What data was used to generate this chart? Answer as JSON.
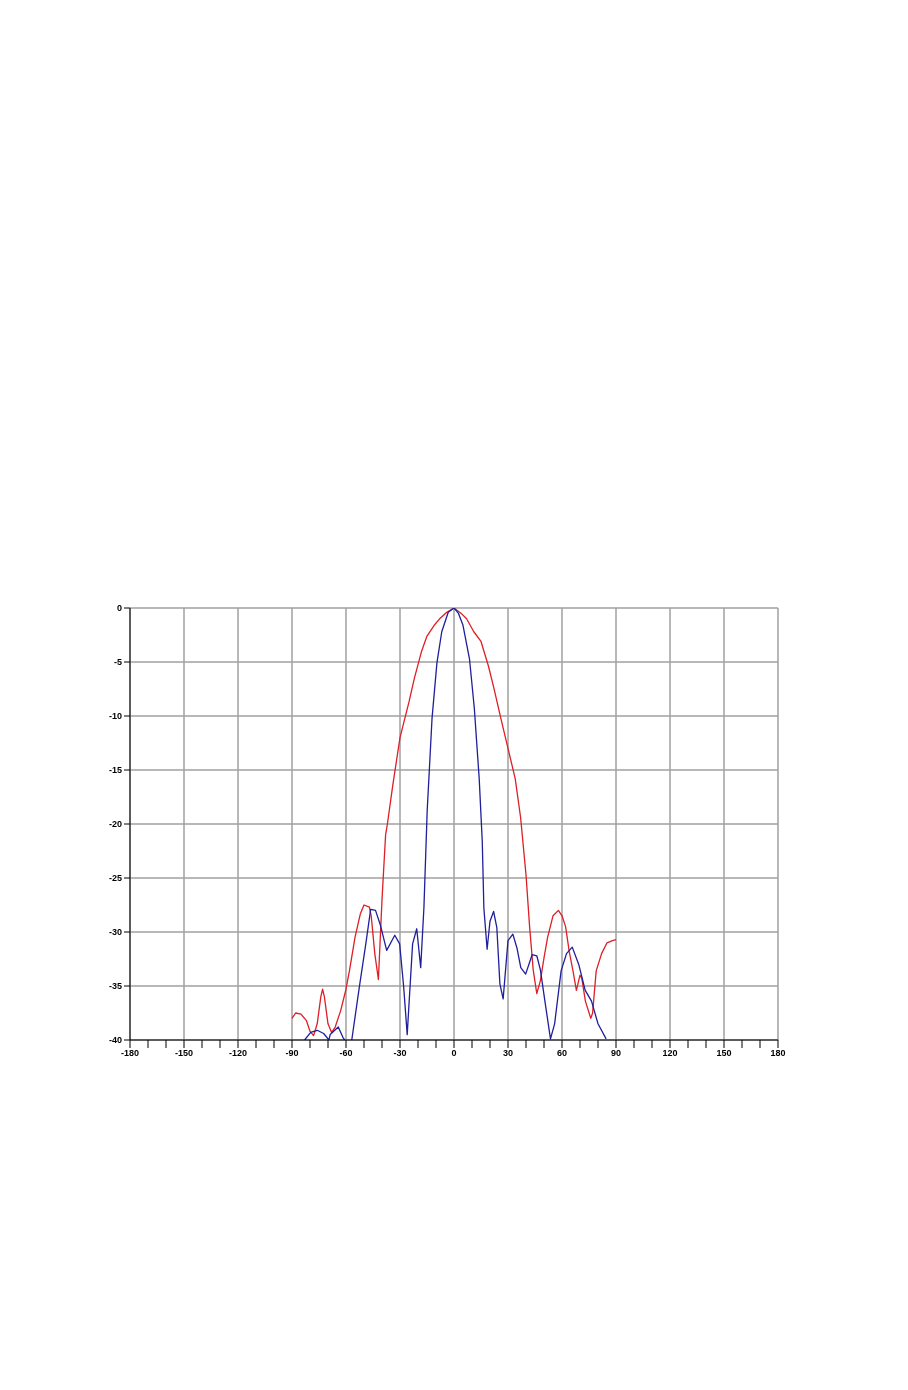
{
  "chart_data": {
    "type": "line",
    "xlim": [
      -180,
      180
    ],
    "ylim": [
      -40,
      0
    ],
    "xticks": [
      -180,
      {
        "value": -170,
        "label": null
      },
      {
        "value": -160,
        "label": null
      },
      -150,
      {
        "value": -140,
        "label": null
      },
      {
        "value": -130,
        "label": null
      },
      -120,
      {
        "value": -110,
        "label": null
      },
      {
        "value": -100,
        "label": null
      },
      -90,
      {
        "value": -80,
        "label": null
      },
      {
        "value": -70,
        "label": null
      },
      -60,
      {
        "value": -50,
        "label": null
      },
      {
        "value": -40,
        "label": null
      },
      -30,
      {
        "value": -20,
        "label": null
      },
      {
        "value": -10,
        "label": null
      },
      0,
      {
        "value": 10,
        "label": null
      },
      {
        "value": 20,
        "label": null
      },
      30,
      {
        "value": 40,
        "label": null
      },
      {
        "value": 50,
        "label": null
      },
      60,
      {
        "value": 70,
        "label": null
      },
      {
        "value": 80,
        "label": null
      },
      90,
      {
        "value": 100,
        "label": null
      },
      {
        "value": 110,
        "label": null
      },
      120,
      {
        "value": 130,
        "label": null
      },
      {
        "value": 140,
        "label": null
      },
      150,
      {
        "value": 160,
        "label": null
      },
      {
        "value": 170,
        "label": null
      },
      180
    ],
    "yticks": [
      0,
      -5,
      -10,
      -15,
      -20,
      -25,
      -30,
      -35,
      -40
    ],
    "grid": true,
    "series": [
      {
        "color": "#dd1f26",
        "x": [
          -90,
          -88,
          -85,
          -82,
          -80,
          -78,
          -76,
          -74,
          -73,
          -72,
          -70,
          -68,
          -66,
          -63,
          -60,
          -58,
          -55,
          -52,
          -50,
          -47,
          -46,
          -44,
          -42,
          -40,
          -38,
          -37,
          -34,
          -30,
          -25,
          -22,
          -18,
          -15,
          -11,
          -8,
          -4,
          0,
          4,
          7,
          11,
          15,
          19,
          22,
          26,
          30,
          34,
          37,
          40,
          42,
          44,
          46,
          48,
          50,
          52,
          55,
          58,
          60,
          62,
          64,
          66,
          68,
          70,
          71,
          73,
          76,
          77,
          79,
          82,
          85,
          88,
          90
        ],
        "values": [
          -38,
          -37.5,
          -37.6,
          -38.2,
          -39.2,
          -39.6,
          -38.5,
          -36,
          -35.3,
          -36,
          -38.5,
          -39.3,
          -38.8,
          -37.3,
          -35.3,
          -33.5,
          -30.5,
          -28.3,
          -27.5,
          -27.7,
          -28.5,
          -32,
          -34.4,
          -27,
          -21,
          -20,
          -16.4,
          -12,
          -8.7,
          -6.5,
          -4,
          -2.6,
          -1.6,
          -1,
          -0.4,
          0,
          -0.5,
          -1,
          -2.2,
          -3.1,
          -5.3,
          -7.3,
          -10.2,
          -13,
          -15.8,
          -19.4,
          -24.7,
          -29.5,
          -33.5,
          -35.7,
          -34.5,
          -32.4,
          -30.5,
          -28.5,
          -28,
          -28.5,
          -29.5,
          -31.8,
          -33.5,
          -35.4,
          -34,
          -34.3,
          -36.4,
          -38,
          -37.5,
          -33.6,
          -32,
          -31,
          -30.8,
          -30.7
        ]
      },
      {
        "color": "#1f1f9c",
        "x": [
          -83,
          -79.6,
          -76,
          -72.4,
          -69.5,
          -68.8,
          -64.3,
          -61.6,
          -60.7,
          -58.5,
          -56.8,
          -52.6,
          -49,
          -46.3,
          -43.6,
          -41,
          -37.4,
          -32.9,
          -30.2,
          -28,
          -26,
          -23,
          -20.7,
          -18.5,
          -16.7,
          -14.9,
          -12.2,
          -9.5,
          -6.8,
          -3.2,
          0,
          2.5,
          5,
          8.6,
          11.3,
          14,
          15.7,
          16.6,
          18.4,
          20,
          22,
          23.8,
          25.5,
          27.3,
          30,
          32.7,
          35,
          37.1,
          39.8,
          43.4,
          46,
          48,
          50.5,
          53.6,
          55.9,
          59.5,
          62.5,
          65.7,
          69.3,
          72.9,
          76.4,
          80,
          84.5
        ],
        "values": [
          -40,
          -39.3,
          -39.1,
          -39.4,
          -40,
          -39.5,
          -38.8,
          -39.8,
          -40,
          null,
          -40,
          -35.1,
          -31.1,
          -27.9,
          -28,
          -29.3,
          -31.7,
          -30.3,
          -31.1,
          -35,
          -39.5,
          -31.1,
          -29.7,
          -33.3,
          -27.7,
          -18.8,
          -10.2,
          -5.1,
          -2.2,
          -0.4,
          0,
          -0.5,
          -1.6,
          -4.7,
          -9.3,
          -15.8,
          -21.6,
          -27.8,
          -31.6,
          -29,
          -28.1,
          -29.6,
          -34.8,
          -36.2,
          -30.8,
          -30.2,
          -31.5,
          -33.3,
          -33.9,
          -32.1,
          -32.2,
          -33.5,
          -36.4,
          -39.9,
          -38.5,
          -33.6,
          -32,
          -31.4,
          -33,
          -35.4,
          -36.4,
          -38.5,
          -39.9
        ]
      }
    ]
  }
}
